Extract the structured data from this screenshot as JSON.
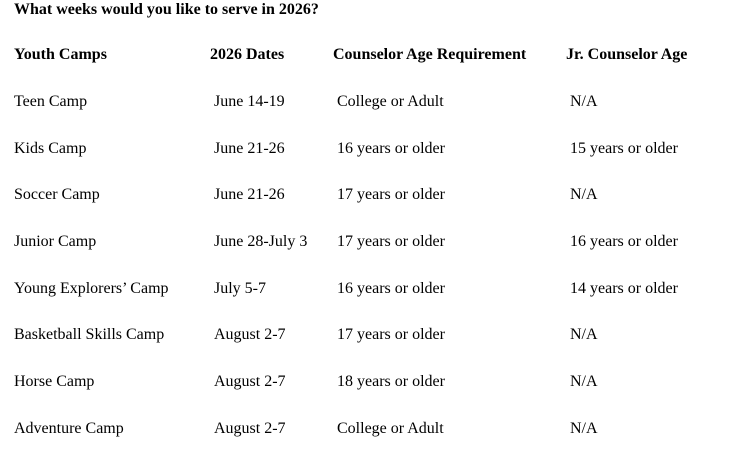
{
  "page": {
    "title": "What weeks would you like to serve in 2026?"
  },
  "colors": {
    "text": "#000000",
    "background": "#ffffff"
  },
  "table": {
    "columns": [
      {
        "label": "Youth Camps"
      },
      {
        "label": "2026 Dates"
      },
      {
        "label": "Counselor Age Requirement"
      },
      {
        "label": "Jr. Counselor Age"
      }
    ],
    "rows": [
      {
        "camp": "Teen Camp",
        "dates": "June 14-19",
        "counselor_age": "College or Adult",
        "jr_counselor_age": "N/A"
      },
      {
        "camp": "Kids Camp",
        "dates": "June 21-26",
        "counselor_age": "16 years or older",
        "jr_counselor_age": "15 years or older"
      },
      {
        "camp": "Soccer Camp",
        "dates": "June 21-26",
        "counselor_age": "17 years or older",
        "jr_counselor_age": "N/A"
      },
      {
        "camp": "Junior Camp",
        "dates": "June 28-July 3",
        "counselor_age": "17 years or older",
        "jr_counselor_age": "16 years or older"
      },
      {
        "camp": "Young Explorers’ Camp",
        "dates": "July 5-7",
        "counselor_age": "16 years or older",
        "jr_counselor_age": "14 years or older"
      },
      {
        "camp": "Basketball Skills Camp",
        "dates": "August 2-7",
        "counselor_age": "17 years or older",
        "jr_counselor_age": "N/A"
      },
      {
        "camp": "Horse Camp",
        "dates": "August 2-7",
        "counselor_age": "18 years or older",
        "jr_counselor_age": "N/A"
      },
      {
        "camp": "Adventure Camp",
        "dates": "August 2-7",
        "counselor_age": "College or Adult",
        "jr_counselor_age": "N/A"
      }
    ]
  }
}
